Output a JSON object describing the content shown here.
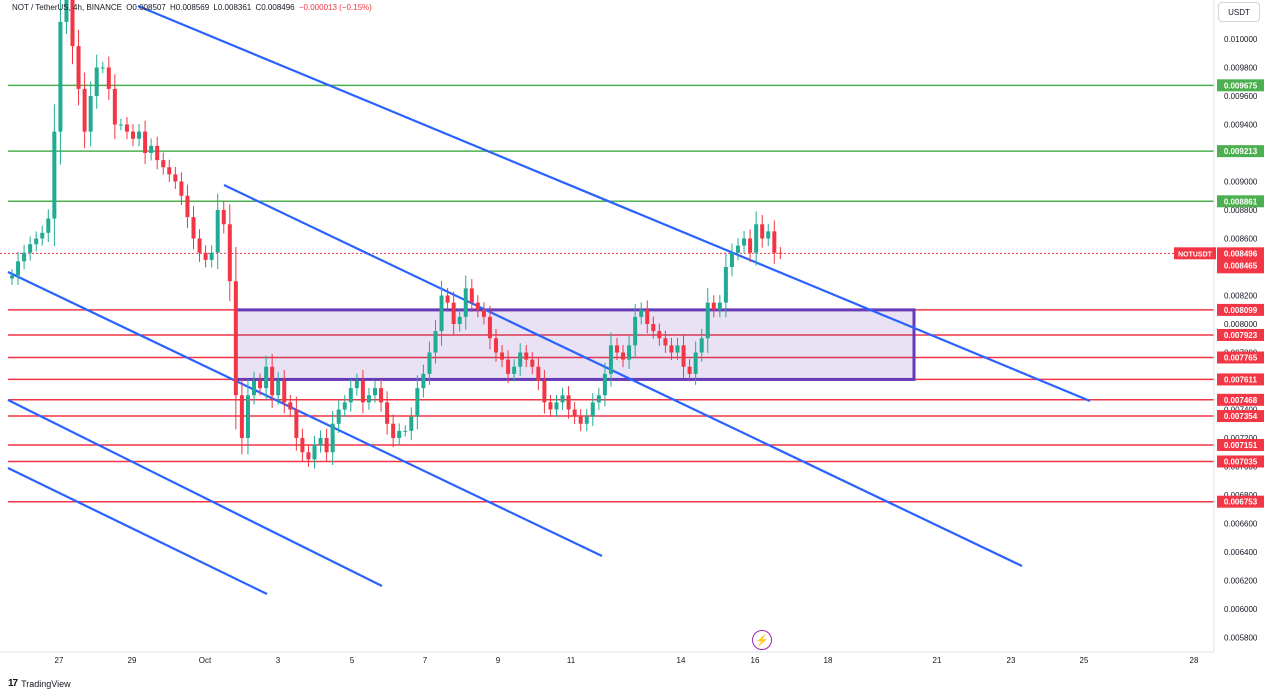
{
  "header": {
    "symbol": "NOT / TetherUS, 4h, BINANCE",
    "open": "O0.008507",
    "high": "H0.008569",
    "low": "L0.008361",
    "close": "C0.008496",
    "change": "−0.000013 (−0.15%)"
  },
  "currency": "USDT",
  "brand": "TradingView",
  "icons": {
    "logo": "tradingview-logo-icon",
    "bolt": "lightning-icon"
  },
  "colors": {
    "up": "#22ab94",
    "down": "#f23645",
    "green_level": "#4caf50",
    "red_level": "#f23645",
    "channel": "#2962ff",
    "box": "#673ab7"
  },
  "chart_data": {
    "type": "candlestick",
    "title": "NOT / TetherUS, 4h, BINANCE",
    "x_ticks": [
      "27",
      "29",
      "Oct",
      "3",
      "5",
      "7",
      "9",
      "11",
      "14",
      "16",
      "18",
      "21",
      "23",
      "25",
      "28"
    ],
    "y_ticks": [
      "0.010000",
      "0.009800",
      "0.009600",
      "0.009400",
      "0.009200",
      "0.009000",
      "0.008800",
      "0.008600",
      "0.008400",
      "0.008200",
      "0.008000",
      "0.007800",
      "0.007600",
      "0.007400",
      "0.007200",
      "0.007000",
      "0.006800",
      "0.006600",
      "0.006400",
      "0.006200",
      "0.006000",
      "0.005800"
    ],
    "ylim": [
      0.0057,
      0.0104
    ],
    "resistance_levels": [
      0.009675,
      0.009213,
      0.008861
    ],
    "support_levels": [
      0.008099,
      0.007923,
      0.007765,
      0.007611,
      0.007468,
      0.007354,
      0.007151,
      0.007035,
      0.006753
    ],
    "current_price": {
      "label": "NOTUSDT",
      "price": 0.008496,
      "countdown": "01:57:14"
    },
    "extra_label": 0.008465,
    "range_box": {
      "top": 0.008099,
      "bottom": 0.007611
    },
    "closes": [
      0.00834,
      0.00844,
      0.0085,
      0.00856,
      0.0086,
      0.00864,
      0.00874,
      0.00935,
      0.01012,
      0.0103,
      0.00995,
      0.00965,
      0.00935,
      0.0096,
      0.0098,
      0.0098,
      0.00965,
      0.0094,
      0.0094,
      0.00935,
      0.0093,
      0.00935,
      0.0092,
      0.00925,
      0.00915,
      0.0091,
      0.00905,
      0.009,
      0.0089,
      0.00875,
      0.0086,
      0.0085,
      0.00845,
      0.0085,
      0.0088,
      0.0087,
      0.0083,
      0.0075,
      0.0072,
      0.0075,
      0.0076,
      0.00755,
      0.0077,
      0.0075,
      0.0076,
      0.00745,
      0.0074,
      0.0072,
      0.0071,
      0.00705,
      0.00715,
      0.0072,
      0.0071,
      0.0073,
      0.0074,
      0.00745,
      0.00755,
      0.0076,
      0.00745,
      0.0075,
      0.00755,
      0.00745,
      0.0073,
      0.0072,
      0.00725,
      0.00725,
      0.00735,
      0.00755,
      0.00765,
      0.0078,
      0.00795,
      0.0082,
      0.00815,
      0.008,
      0.00805,
      0.00825,
      0.00815,
      0.0081,
      0.00805,
      0.0079,
      0.0078,
      0.00775,
      0.00765,
      0.0077,
      0.0078,
      0.00775,
      0.0077,
      0.0076,
      0.00745,
      0.0074,
      0.00745,
      0.0075,
      0.0074,
      0.00735,
      0.0073,
      0.00735,
      0.00745,
      0.0075,
      0.00765,
      0.00785,
      0.0078,
      0.00775,
      0.00785,
      0.00805,
      0.0081,
      0.008,
      0.00795,
      0.0079,
      0.00785,
      0.0078,
      0.00785,
      0.0077,
      0.00765,
      0.0078,
      0.0079,
      0.00815,
      0.0081,
      0.00815,
      0.0084,
      0.0085,
      0.00855,
      0.0086,
      0.0085,
      0.0087,
      0.0086,
      0.00865,
      0.0085,
      0.008496
    ]
  }
}
